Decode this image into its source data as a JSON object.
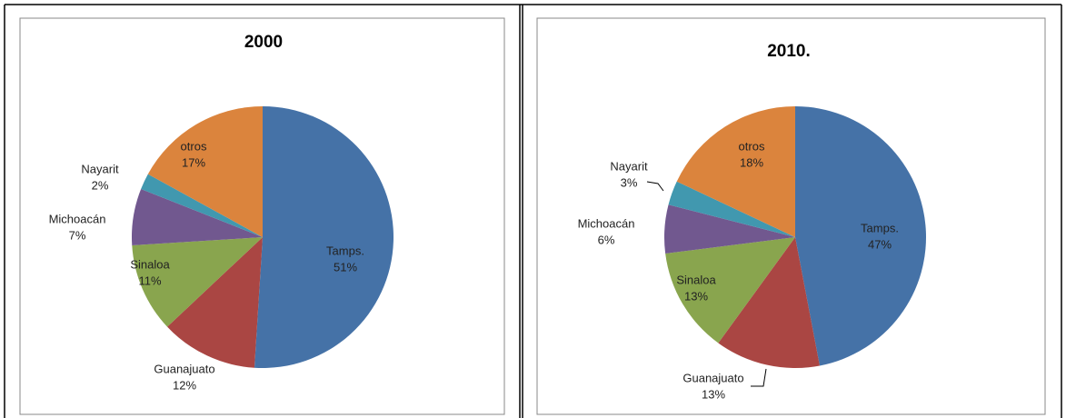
{
  "chart_data": [
    {
      "type": "pie",
      "title": "2000",
      "categories": [
        "Tamps.",
        "Guanajuato",
        "Sinaloa",
        "Michoacán",
        "Nayarit",
        "otros"
      ],
      "values": [
        51,
        12,
        11,
        7,
        2,
        17
      ],
      "value_labels": [
        "51%",
        "12%",
        "11%",
        "7%",
        "2%",
        "17%"
      ],
      "colors": [
        "#4572a7",
        "#aa4643",
        "#89a54e",
        "#71588f",
        "#4198af",
        "#db843d"
      ]
    },
    {
      "type": "pie",
      "title": "2010.",
      "categories": [
        "Tamps.",
        "Guanajuato",
        "Sinaloa",
        "Michoacán",
        "Nayarit",
        "otros"
      ],
      "values": [
        47,
        13,
        13,
        6,
        3,
        18
      ],
      "value_labels": [
        "47%",
        "13%",
        "13%",
        "6%",
        "3%",
        "18%"
      ],
      "colors": [
        "#4572a7",
        "#aa4643",
        "#89a54e",
        "#71588f",
        "#4198af",
        "#db843d"
      ]
    }
  ]
}
